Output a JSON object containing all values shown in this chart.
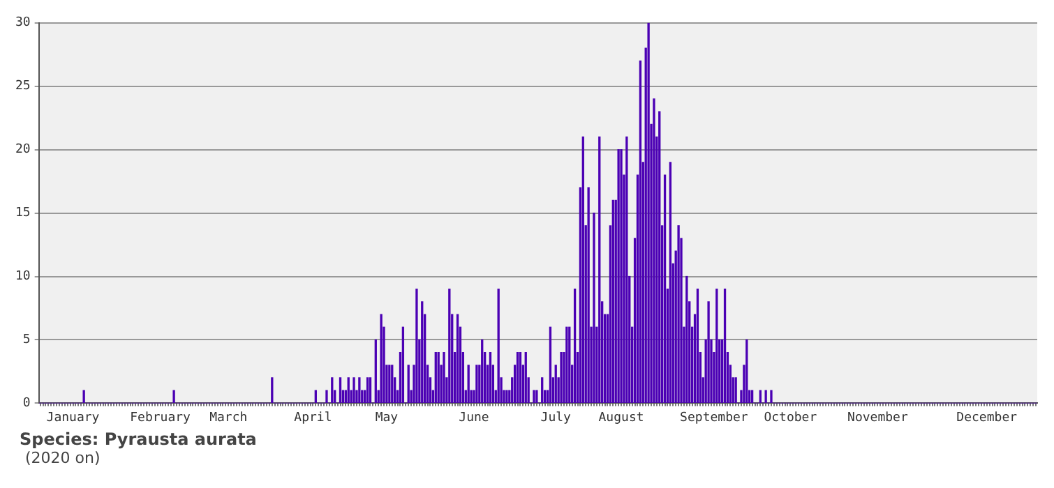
{
  "chart_data": {
    "type": "bar",
    "categories": [
      null,
      null,
      null,
      null,
      null,
      null,
      null,
      null,
      null,
      null,
      null,
      null,
      "January",
      null,
      null,
      null,
      null,
      null,
      null,
      null,
      null,
      null,
      null,
      null,
      null,
      null,
      null,
      null,
      null,
      null,
      null,
      null,
      null,
      null,
      null,
      null,
      null,
      null,
      null,
      null,
      null,
      null,
      null,
      null,
      "February",
      null,
      null,
      null,
      null,
      null,
      null,
      null,
      null,
      null,
      null,
      null,
      null,
      null,
      null,
      null,
      null,
      null,
      null,
      null,
      null,
      null,
      null,
      null,
      null,
      "March",
      null,
      null,
      null,
      null,
      null,
      null,
      null,
      null,
      null,
      null,
      null,
      null,
      null,
      null,
      null,
      null,
      null,
      null,
      null,
      null,
      null,
      null,
      null,
      null,
      null,
      null,
      null,
      null,
      null,
      null,
      "April",
      null,
      null,
      null,
      null,
      null,
      null,
      null,
      null,
      null,
      null,
      null,
      null,
      null,
      null,
      null,
      null,
      null,
      null,
      null,
      null,
      null,
      null,
      null,
      null,
      null,
      null,
      "May",
      null,
      null,
      null,
      null,
      null,
      null,
      null,
      null,
      null,
      null,
      null,
      null,
      null,
      null,
      null,
      null,
      null,
      null,
      null,
      null,
      null,
      null,
      null,
      null,
      null,
      null,
      null,
      null,
      null,
      null,
      null,
      "June",
      null,
      null,
      null,
      null,
      null,
      null,
      null,
      null,
      null,
      null,
      null,
      null,
      null,
      null,
      null,
      null,
      null,
      null,
      null,
      null,
      null,
      null,
      null,
      null,
      null,
      null,
      null,
      null,
      null,
      "July",
      null,
      null,
      null,
      null,
      null,
      null,
      null,
      null,
      null,
      null,
      null,
      null,
      null,
      null,
      null,
      null,
      null,
      null,
      null,
      null,
      null,
      null,
      null,
      "August",
      null,
      null,
      null,
      null,
      null,
      null,
      null,
      null,
      null,
      null,
      null,
      null,
      null,
      null,
      null,
      null,
      null,
      null,
      null,
      null,
      null,
      null,
      null,
      null,
      null,
      null,
      null,
      null,
      null,
      null,
      null,
      null,
      null,
      "September",
      null,
      null,
      null,
      null,
      null,
      null,
      null,
      null,
      null,
      null,
      null,
      null,
      null,
      null,
      null,
      null,
      null,
      null,
      null,
      null,
      null,
      null,
      null,
      null,
      null,
      null,
      null,
      "October",
      null,
      null,
      null,
      null,
      null,
      null,
      null,
      null,
      null,
      null,
      null,
      null,
      null,
      null,
      null,
      null,
      null,
      null,
      null,
      null,
      null,
      null,
      null,
      null,
      null,
      null,
      null,
      null,
      null,
      null,
      null,
      "November",
      null,
      null,
      null,
      null,
      null,
      null,
      null,
      null,
      null,
      null,
      null,
      null,
      null,
      null,
      null,
      null,
      null,
      null,
      null,
      null,
      null,
      null,
      null,
      null,
      null,
      null,
      null,
      null,
      null,
      null,
      null,
      null,
      null,
      null,
      null,
      null,
      null,
      null,
      null,
      "December",
      null,
      null,
      null,
      null,
      null,
      null,
      null,
      null,
      null,
      null,
      null,
      null,
      null,
      null,
      null,
      null,
      null,
      null
    ],
    "values": [
      0,
      0,
      0,
      0,
      0,
      0,
      0,
      0,
      0,
      0,
      0,
      0,
      0,
      0,
      0,
      0,
      1,
      0,
      0,
      0,
      0,
      0,
      0,
      0,
      0,
      0,
      0,
      0,
      0,
      0,
      0,
      0,
      0,
      0,
      0,
      0,
      0,
      0,
      0,
      0,
      0,
      0,
      0,
      0,
      0,
      0,
      0,
      0,
      0,
      1,
      0,
      0,
      0,
      0,
      0,
      0,
      0,
      0,
      0,
      0,
      0,
      0,
      0,
      0,
      0,
      0,
      0,
      0,
      0,
      0,
      0,
      0,
      0,
      0,
      0,
      0,
      0,
      0,
      0,
      0,
      0,
      0,
      0,
      0,
      0,
      2,
      0,
      0,
      0,
      0,
      0,
      0,
      0,
      0,
      0,
      0,
      0,
      0,
      0,
      0,
      0,
      1,
      0,
      0,
      0,
      1,
      0,
      2,
      1,
      0,
      2,
      1,
      1,
      2,
      1,
      2,
      1,
      2,
      1,
      1,
      2,
      2,
      0,
      5,
      1,
      7,
      6,
      3,
      3,
      3,
      2,
      1,
      4,
      6,
      0,
      3,
      1,
      3,
      9,
      5,
      8,
      7,
      3,
      2,
      1,
      4,
      4,
      3,
      4,
      2,
      9,
      7,
      4,
      7,
      6,
      4,
      1,
      3,
      1,
      1,
      3,
      3,
      5,
      4,
      3,
      4,
      3,
      1,
      9,
      2,
      1,
      1,
      1,
      2,
      3,
      4,
      4,
      3,
      4,
      2,
      0,
      1,
      1,
      0,
      2,
      1,
      1,
      6,
      2,
      3,
      2,
      4,
      4,
      6,
      6,
      3,
      9,
      4,
      17,
      21,
      14,
      17,
      6,
      15,
      6,
      21,
      8,
      7,
      7,
      14,
      16,
      16,
      20,
      20,
      18,
      21,
      10,
      6,
      13,
      18,
      27,
      19,
      28,
      30,
      22,
      24,
      21,
      23,
      14,
      18,
      9,
      19,
      11,
      12,
      14,
      13,
      6,
      10,
      8,
      6,
      7,
      9,
      4,
      2,
      5,
      8,
      5,
      4,
      9,
      5,
      5,
      9,
      4,
      3,
      2,
      2,
      0,
      1,
      3,
      5,
      1,
      1,
      0,
      0,
      1,
      0,
      1,
      0,
      1,
      0,
      0,
      0,
      0,
      0,
      0,
      0,
      0,
      0,
      0,
      0,
      0,
      0,
      0,
      0,
      0,
      0,
      0,
      0,
      0,
      0,
      0,
      0,
      0,
      0,
      0,
      0,
      0,
      0,
      0,
      0,
      0,
      0,
      0,
      0,
      0,
      0,
      0,
      0,
      0,
      0,
      0,
      0,
      0,
      0,
      0,
      0,
      0,
      0,
      0,
      0,
      0,
      0,
      0,
      0,
      0,
      0,
      0,
      0,
      0,
      0,
      0,
      0,
      0,
      0,
      0,
      0,
      0,
      0,
      0,
      0,
      0,
      0,
      0,
      0,
      0,
      0,
      0,
      0,
      0,
      0,
      0,
      0,
      0,
      0,
      0,
      0,
      0,
      0,
      0,
      0,
      0,
      0,
      0,
      0,
      0,
      0
    ],
    "color": "#4b00b4",
    "ylim": [
      0,
      30
    ],
    "yticks": [
      0,
      5,
      10,
      15,
      20,
      25,
      30
    ],
    "grid": "y",
    "legend": false,
    "annotations": [
      "Species: Pyrausta aurata",
      "(2020 on)"
    ]
  }
}
